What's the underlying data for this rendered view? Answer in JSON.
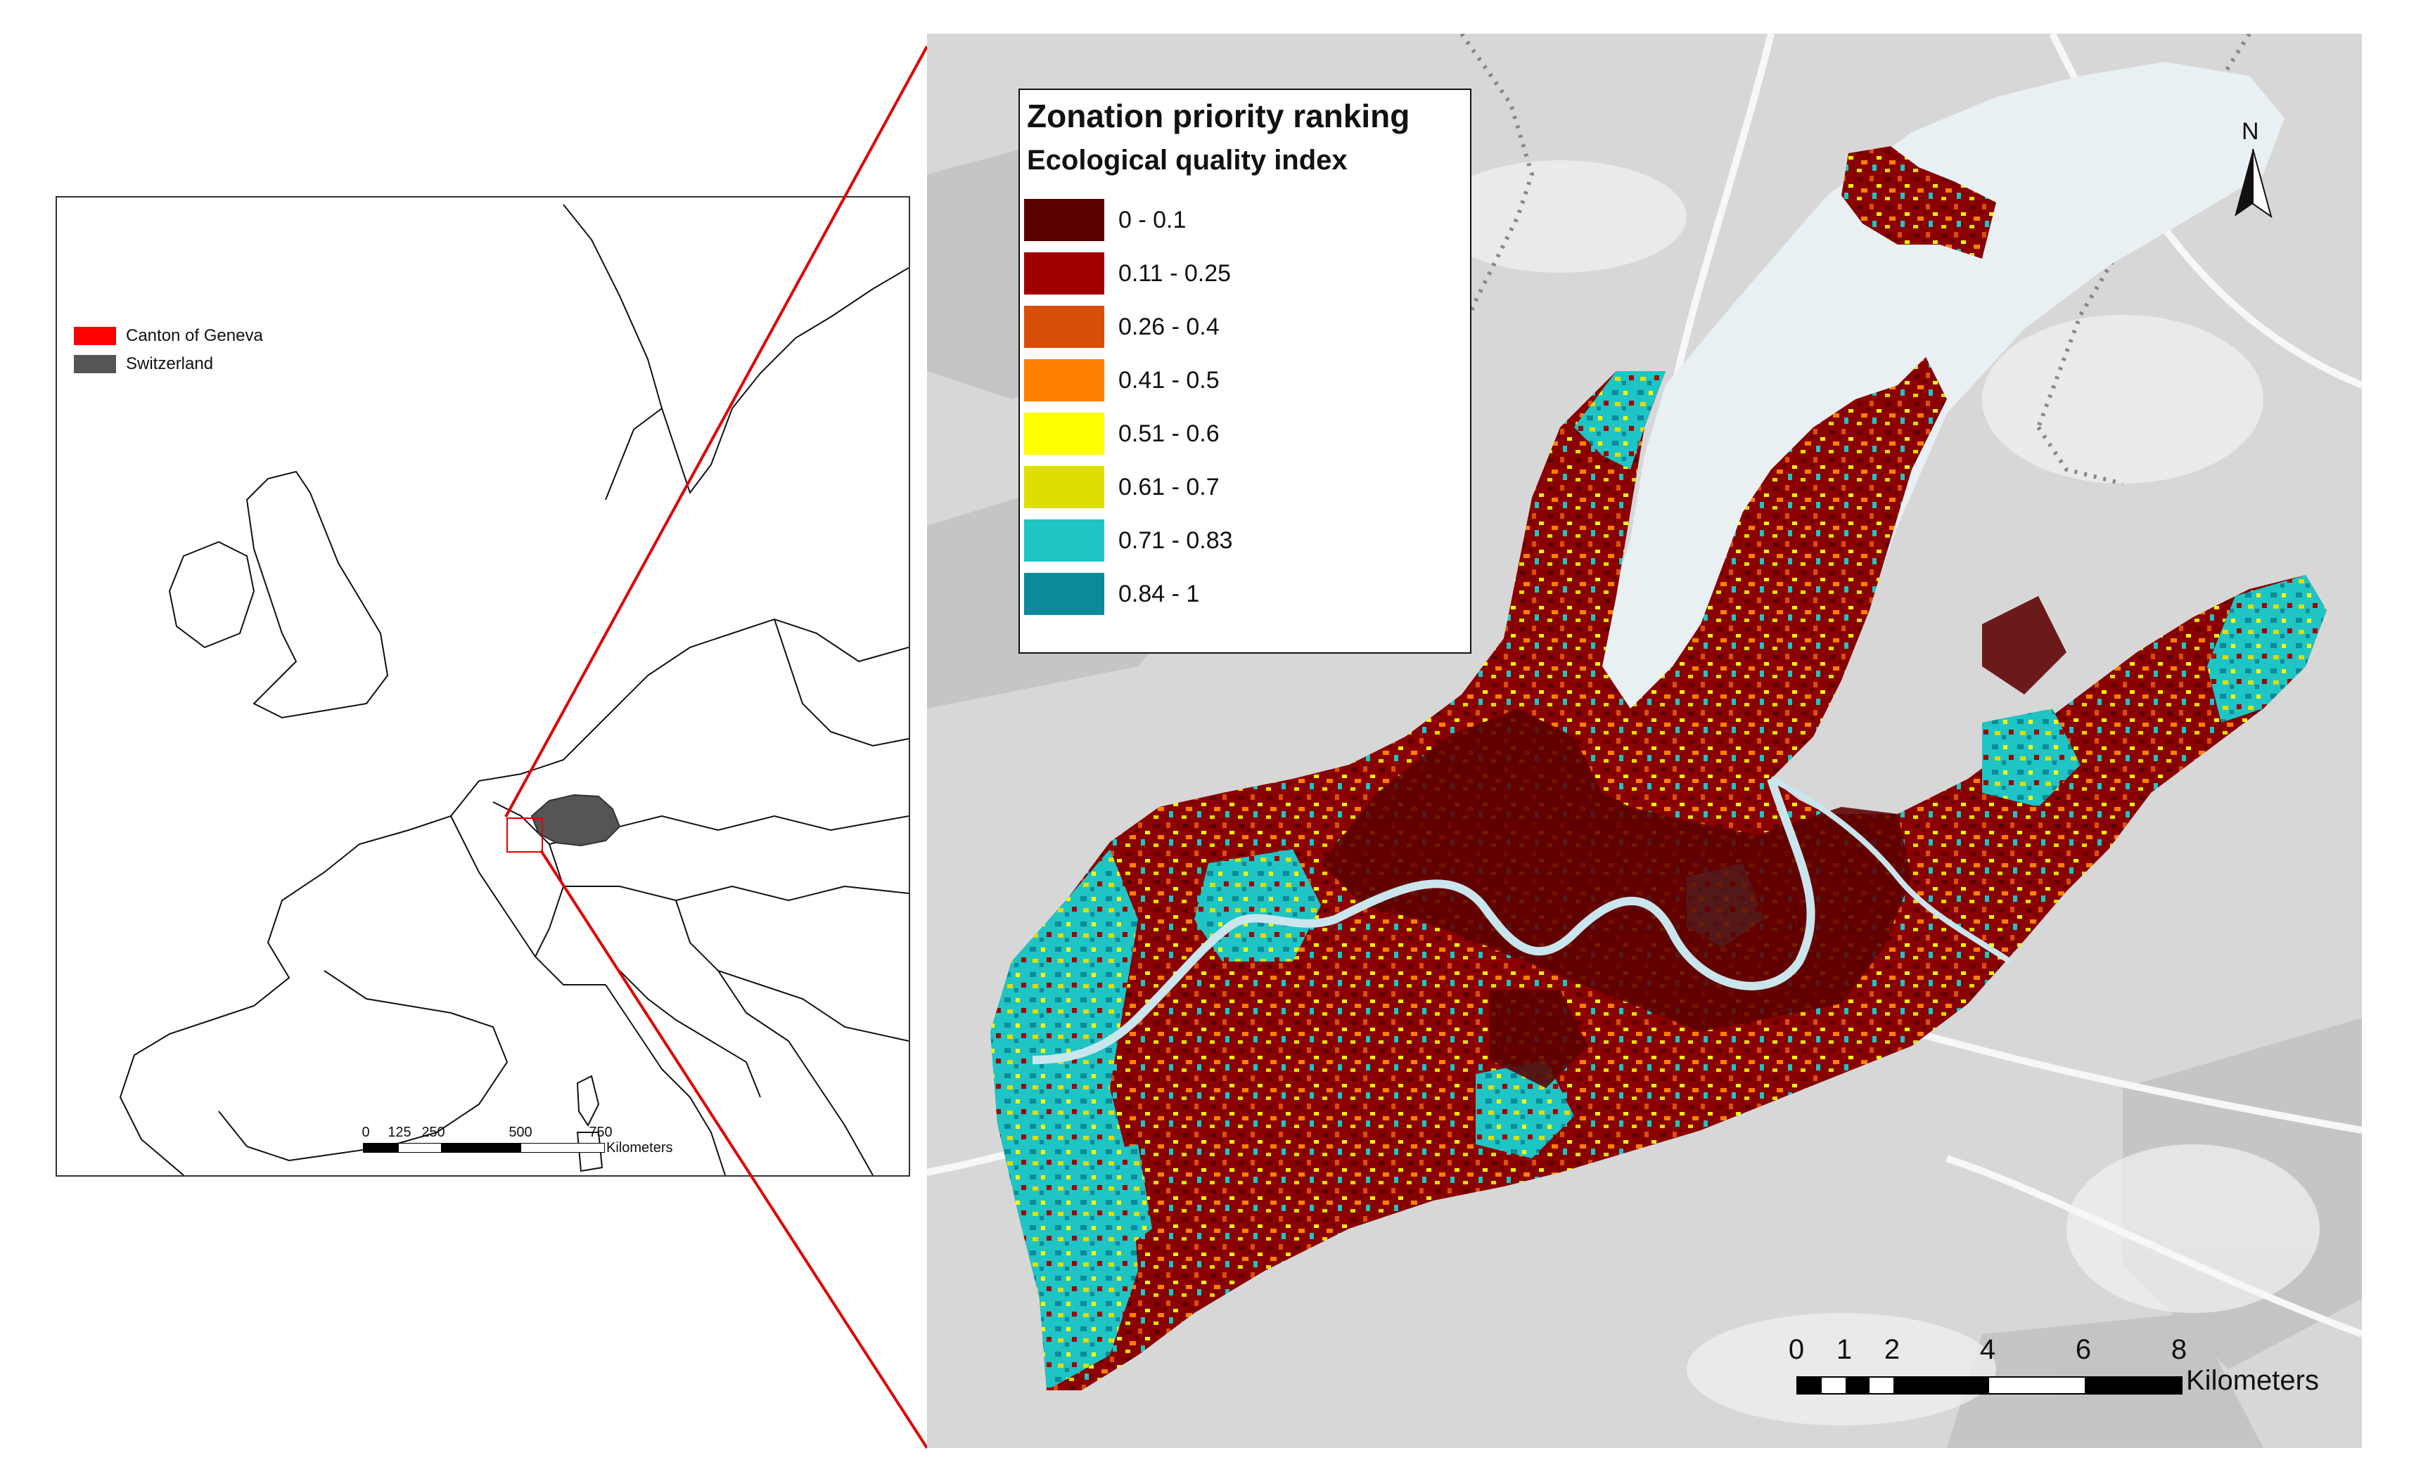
{
  "inset_map": {
    "legend": [
      {
        "label": "Canton of Geneva",
        "color": "#ff0000"
      },
      {
        "label": "Switzerland",
        "color": "#555555"
      }
    ],
    "scale_bar": {
      "ticks": [
        "0",
        "125",
        "250",
        "500",
        "750"
      ],
      "unit": "Kilometers"
    }
  },
  "main_map": {
    "legend": {
      "title": "Zonation priority ranking",
      "subtitle": "Ecological quality index",
      "classes": [
        {
          "label": "0 - 0.1",
          "color": "#5c0000"
        },
        {
          "label": "0.11 - 0.25",
          "color": "#a00000"
        },
        {
          "label": "0.26 - 0.4",
          "color": "#d94f0a"
        },
        {
          "label": "0.41 - 0.5",
          "color": "#ff8000"
        },
        {
          "label": "0.51 - 0.6",
          "color": "#ffff00"
        },
        {
          "label": "0.61 - 0.7",
          "color": "#dede00"
        },
        {
          "label": "0.71 - 0.83",
          "color": "#1fc4c4"
        },
        {
          "label": "0.84 - 1",
          "color": "#0a8a9a"
        }
      ]
    },
    "north_arrow": "N",
    "scale_bar": {
      "ticks": [
        "0",
        "1",
        "2",
        "4",
        "6",
        "8"
      ],
      "unit": "Kilometers"
    }
  },
  "colors": {
    "zoom_lines": "#e00000",
    "lake": "#e9f0f4",
    "basemap": "#d7d7d7"
  }
}
